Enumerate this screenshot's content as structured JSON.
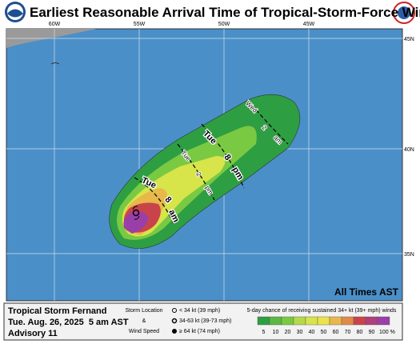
{
  "header": {
    "title": "Earliest Reasonable Arrival Time of Tropical-Storm-Force Winds"
  },
  "map": {
    "lon_labels": [
      "60W",
      "55W",
      "50W",
      "45W"
    ],
    "lat_labels": [
      "45N",
      "40N",
      "35N"
    ],
    "isochrones": [
      {
        "parts": [
          "Tue",
          "8",
          "am"
        ]
      },
      {
        "parts": [
          "Tue",
          "2",
          "pm"
        ]
      },
      {
        "parts": [
          "Tue",
          "8",
          "pm"
        ]
      },
      {
        "parts": [
          "Wed",
          "2",
          "am"
        ]
      }
    ],
    "note": "All Times AST"
  },
  "footer": {
    "storm": "Tropical Storm Fernand",
    "issued": "Tue. Aug. 26, 2025  5 am AST",
    "advisory": "Advisory 11",
    "location_legend": {
      "title_1": "Storm Location",
      "title_2": "&",
      "title_3": "Wind Speed",
      "items": [
        "< 34 kt (39 mph)",
        "34-63 kt (39-73 mph)",
        "≥ 64 kt (74 mph)"
      ]
    },
    "chance_legend": {
      "title": "5-day chance of receiving sustained 34+ kt (39+ mph) winds",
      "labels": [
        "5",
        "10",
        "20",
        "30",
        "40",
        "50",
        "60",
        "70",
        "80",
        "90",
        "100 %"
      ]
    }
  }
}
